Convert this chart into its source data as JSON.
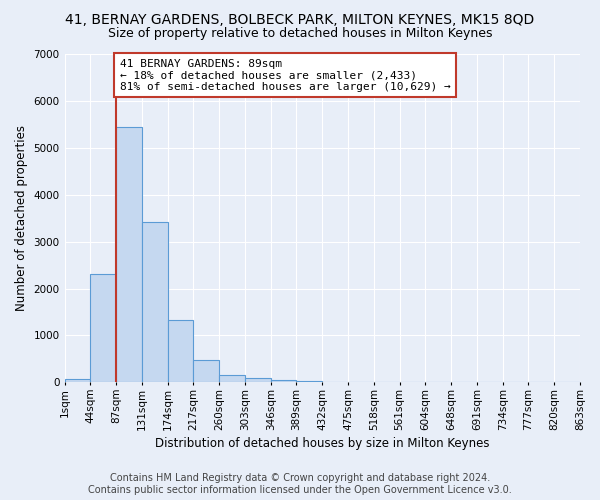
{
  "title": "41, BERNAY GARDENS, BOLBECK PARK, MILTON KEYNES, MK15 8QD",
  "subtitle": "Size of property relative to detached houses in Milton Keynes",
  "xlabel": "Distribution of detached houses by size in Milton Keynes",
  "ylabel": "Number of detached properties",
  "footer_line1": "Contains HM Land Registry data © Crown copyright and database right 2024.",
  "footer_line2": "Contains public sector information licensed under the Open Government Licence v3.0.",
  "bin_labels": [
    "1sqm",
    "44sqm",
    "87sqm",
    "131sqm",
    "174sqm",
    "217sqm",
    "260sqm",
    "303sqm",
    "346sqm",
    "389sqm",
    "432sqm",
    "475sqm",
    "518sqm",
    "561sqm",
    "604sqm",
    "648sqm",
    "691sqm",
    "734sqm",
    "777sqm",
    "820sqm",
    "863sqm"
  ],
  "bar_values": [
    75,
    2300,
    5450,
    3420,
    1320,
    470,
    165,
    90,
    55,
    35,
    0,
    0,
    0,
    0,
    0,
    0,
    0,
    0,
    0,
    0
  ],
  "bar_color": "#c5d8f0",
  "bar_edge_color": "#5b9bd5",
  "vline_color": "#c0392b",
  "annotation_text": "41 BERNAY GARDENS: 89sqm\n← 18% of detached houses are smaller (2,433)\n81% of semi-detached houses are larger (10,629) →",
  "annotation_box_color": "#ffffff",
  "annotation_box_edge": "#c0392b",
  "ylim": [
    0,
    7000
  ],
  "yticks": [
    0,
    1000,
    2000,
    3000,
    4000,
    5000,
    6000,
    7000
  ],
  "background_color": "#e8eef8",
  "grid_color": "#ffffff",
  "title_fontsize": 10,
  "subtitle_fontsize": 9,
  "axis_label_fontsize": 8.5,
  "tick_fontsize": 7.5,
  "footer_fontsize": 7,
  "vline_bar_index": 2
}
